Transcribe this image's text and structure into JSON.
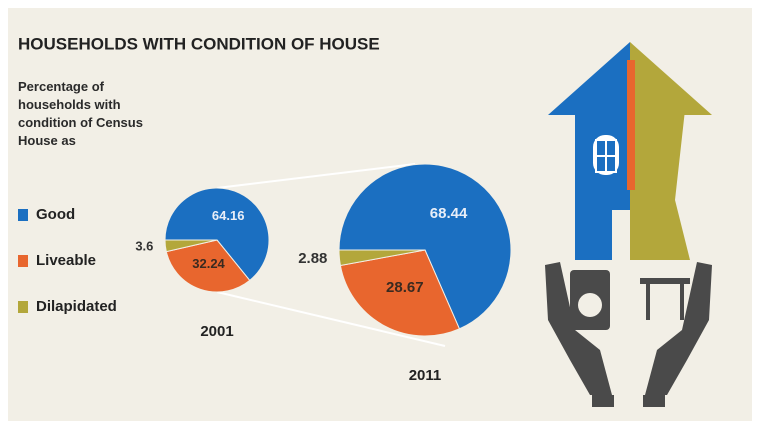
{
  "chart_data": {
    "type": "pie",
    "title": "HOUSEHOLDS WITH CONDITION OF HOUSE",
    "subtitle": "Percentage of households with condition of Census House as",
    "categories": [
      "Good",
      "Liveable",
      "Dilapidated"
    ],
    "colors": [
      "#1b6fc1",
      "#e8662e",
      "#b3a73b"
    ],
    "series": [
      {
        "name": "2001",
        "values": [
          64.16,
          32.24,
          3.6
        ]
      },
      {
        "name": "2011",
        "values": [
          68.44,
          28.67,
          2.88
        ]
      }
    ]
  }
}
